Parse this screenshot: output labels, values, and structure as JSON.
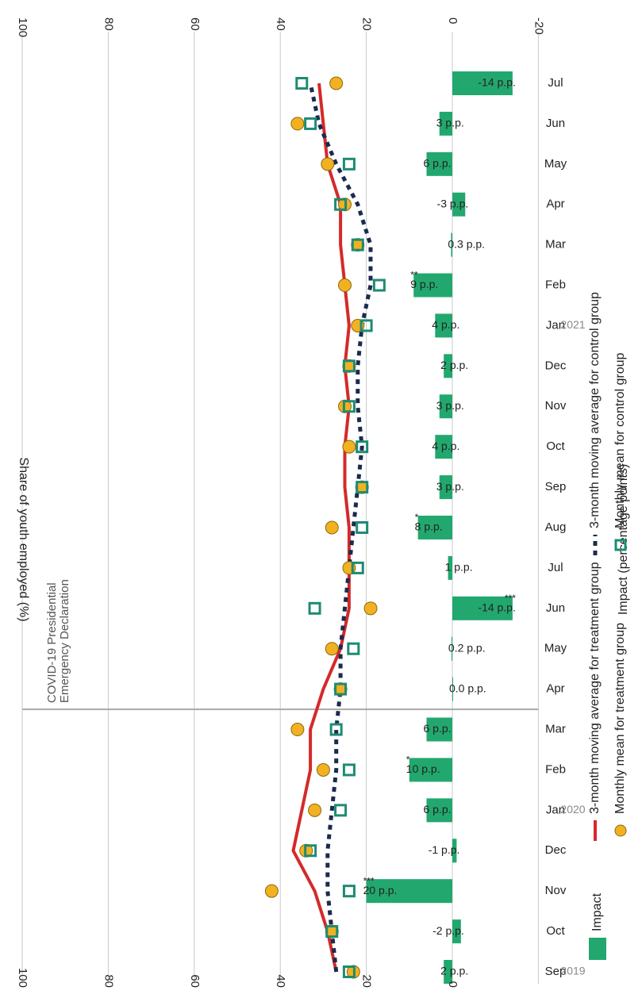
{
  "chart_data": {
    "type": "bar+line+scatter",
    "months": [
      "Sep",
      "Oct",
      "Nov",
      "Dec",
      "Jan",
      "Feb",
      "Mar",
      "Apr",
      "May",
      "Jun",
      "Jul",
      "Aug",
      "Sep",
      "Oct",
      "Nov",
      "Dec",
      "Jan",
      "Feb",
      "Mar",
      "Apr",
      "May",
      "Jun",
      "Jul"
    ],
    "years": [
      {
        "label": "2019",
        "index": 0
      },
      {
        "label": "2020",
        "index": 4
      },
      {
        "label": "2021",
        "index": 16
      }
    ],
    "left_axis": {
      "title": "Share of youth employed (%)",
      "ticks": [
        0,
        20,
        40,
        60,
        80,
        100
      ],
      "range": [
        0,
        100
      ]
    },
    "right_axis": {
      "title": "Impact (percentage points)",
      "ticks": [
        -20,
        0,
        20,
        40,
        60,
        80,
        100
      ],
      "range": [
        -20,
        100
      ]
    },
    "impact": {
      "name": "Impact",
      "values": [
        2,
        -2,
        20,
        -1,
        6,
        10,
        6,
        0,
        0.2,
        -14,
        1,
        8,
        3,
        4,
        3,
        2,
        4,
        9,
        0.3,
        -3,
        6,
        3,
        -14
      ],
      "labels": [
        "2 p.p.",
        "-2 p.p.",
        "20 p.p.",
        "-1 p.p.",
        "6 p.p.",
        "10 p.p.",
        "6 p.p.",
        "0.0 p.p.",
        "0.2 p.p.",
        "-14 p.p.",
        "1 p.p.",
        "8 p.p.",
        "3 p.p.",
        "4 p.p.",
        "3 p.p.",
        "2 p.p.",
        "4 p.p.",
        "9 p.p.",
        "0.3 p.p.",
        "-3 p.p.",
        "6 p.p.",
        "3 p.p.",
        "-14 p.p."
      ],
      "stars": [
        "",
        "",
        "***",
        "",
        "",
        "*",
        "",
        "",
        "",
        "***",
        "",
        "*",
        "",
        "",
        "",
        "",
        "",
        "**",
        "",
        "",
        "",
        "",
        ""
      ]
    },
    "treatment_ma": {
      "name": "3-month moving average for treatment group",
      "values": [
        27,
        29,
        32,
        37,
        35,
        33,
        33,
        30,
        26,
        24,
        24,
        24,
        25,
        25,
        24,
        25,
        24,
        25,
        26,
        26,
        29,
        30,
        31
      ]
    },
    "control_ma": {
      "name": "3-month moving average for control group",
      "values": [
        27,
        28,
        29,
        29,
        28,
        27,
        27,
        26,
        26,
        25,
        24,
        23,
        22,
        21,
        22,
        22,
        21,
        19,
        19,
        22,
        27,
        31,
        33
      ]
    },
    "treatment_mean": {
      "name": "Monthly mean for treatment group",
      "values": [
        23,
        28,
        42,
        34,
        32,
        30,
        36,
        26,
        28,
        19,
        24,
        28,
        21,
        24,
        25,
        24,
        22,
        25,
        22,
        25,
        29,
        36,
        27
      ]
    },
    "control_mean": {
      "name": "Monthly mean for control group",
      "values": [
        24,
        28,
        24,
        33,
        26,
        24,
        27,
        26,
        23,
        32,
        22,
        21,
        21,
        21,
        24,
        24,
        20,
        17,
        22,
        26,
        24,
        33,
        35
      ]
    },
    "annotation": {
      "lines": [
        "COVID-19 Presidential",
        "Emergency Declaration"
      ],
      "between": [
        "Mar",
        "Apr"
      ]
    },
    "colors": {
      "impact": "#22a86e",
      "treatment_line": "#d42a2a",
      "control_line": "#1b2b4e",
      "treatment_marker": "#f2b120",
      "control_marker": "#1e8b73",
      "grid": "#c8c8c8"
    }
  }
}
